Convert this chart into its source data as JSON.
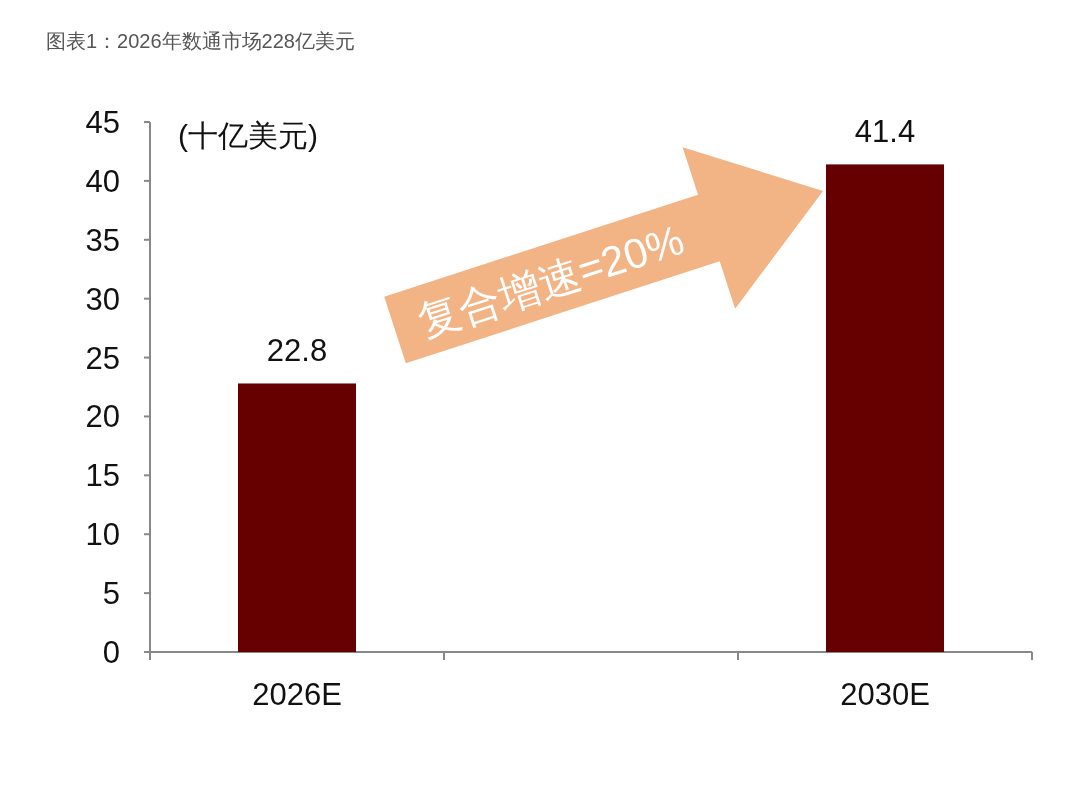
{
  "chart_data": {
    "type": "bar",
    "title": "图表1：2026年数通市场228亿美元",
    "ylabel": "(十亿美元)",
    "categories": [
      "2026E",
      null,
      "2030E"
    ],
    "values": [
      22.8,
      null,
      41.4
    ],
    "color": "#660000",
    "ylim": [
      0,
      45
    ],
    "yticks": [
      0,
      5,
      10,
      15,
      20,
      25,
      30,
      35,
      40,
      45
    ],
    "data_labels": true,
    "grid": false,
    "annotations": [
      "复合增速=20%"
    ]
  }
}
